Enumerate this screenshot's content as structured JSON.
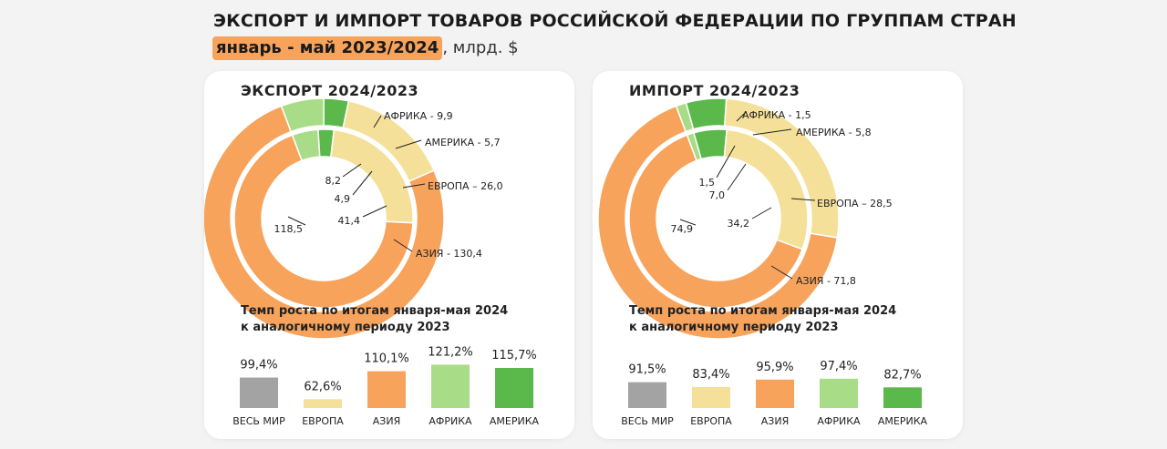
{
  "header": {
    "title": "ЭКСПОРТ И ИМПОРТ ТОВАРОВ РОССИЙСКОЙ ФЕДЕРАЦИИ ПО ГРУППАМ СТРАН",
    "period": "январь - май 2023/2024",
    "unit": ", млрд. $"
  },
  "colors": {
    "asia": "#f7a35c",
    "europe": "#f5e09a",
    "africa": "#a8dc86",
    "america": "#5bb84a",
    "world": "#a3a3a3"
  },
  "chart_data": [
    {
      "type": "pie",
      "title": "ЭКСПОРТ 2024/2023",
      "rings": [
        {
          "year": "2024",
          "values": [
            {
              "name": "АФРИКА",
              "value": 9.9
            },
            {
              "name": "АМЕРИКА",
              "value": 5.7
            },
            {
              "name": "ЕВРОПА",
              "value": 26.0
            },
            {
              "name": "АЗИЯ",
              "value": 130.4
            }
          ]
        },
        {
          "year": "2023",
          "values": [
            {
              "name": "АФРИКА",
              "value": 8.2
            },
            {
              "name": "АМЕРИКА",
              "value": 4.9
            },
            {
              "name": "ЕВРОПА",
              "value": 41.4
            },
            {
              "name": "АЗИЯ",
              "value": 118.5
            }
          ]
        }
      ],
      "outer_labels": [
        "АФРИКА - 9,9",
        "АМЕРИКА - 5,7",
        "ЕВРОПА – 26,0",
        "АЗИЯ - 130,4"
      ],
      "inner_labels": [
        "8,2",
        "4,9",
        "41,4",
        "118,5"
      ],
      "growth": {
        "title_line1": "Темп роста по итогам января-мая 2024",
        "title_line2": "к аналогичному периоду 2023",
        "categories": [
          "ВЕСЬ МИР",
          "ЕВРОПА",
          "АЗИЯ",
          "АФРИКА",
          "АМЕРИКА"
        ],
        "values": [
          99.4,
          62.6,
          110.1,
          121.2,
          115.7
        ],
        "value_labels": [
          "99,4%",
          "62,6%",
          "110,1%",
          "121,2%",
          "115,7%"
        ]
      }
    },
    {
      "type": "pie",
      "title": "ИМПОРТ 2024/2023",
      "rings": [
        {
          "year": "2024",
          "values": [
            {
              "name": "АФРИКА",
              "value": 1.5
            },
            {
              "name": "АМЕРИКА",
              "value": 5.8
            },
            {
              "name": "ЕВРОПА",
              "value": 28.5
            },
            {
              "name": "АЗИЯ",
              "value": 71.8
            }
          ]
        },
        {
          "year": "2023",
          "values": [
            {
              "name": "АФРИКА",
              "value": 1.5
            },
            {
              "name": "АМЕРИКА",
              "value": 7.0
            },
            {
              "name": "ЕВРОПА",
              "value": 34.2
            },
            {
              "name": "АЗИЯ",
              "value": 74.9
            }
          ]
        }
      ],
      "outer_labels": [
        "АФРИКА - 1,5",
        "АМЕРИКА - 5,8",
        "ЕВРОПА – 28,5",
        "АЗИЯ - 71,8"
      ],
      "inner_labels": [
        "1,5",
        "7,0",
        "34,2",
        "74,9"
      ],
      "growth": {
        "title_line1": "Темп роста по итогам января-мая 2024",
        "title_line2": "к аналогичному периоду 2023",
        "categories": [
          "ВЕСЬ МИР",
          "ЕВРОПА",
          "АЗИЯ",
          "АФРИКА",
          "АМЕРИКА"
        ],
        "values": [
          91.5,
          83.4,
          95.9,
          97.4,
          82.7
        ],
        "value_labels": [
          "91,5%",
          "83,4%",
          "95,9%",
          "97,4%",
          "82,7%"
        ]
      }
    }
  ]
}
